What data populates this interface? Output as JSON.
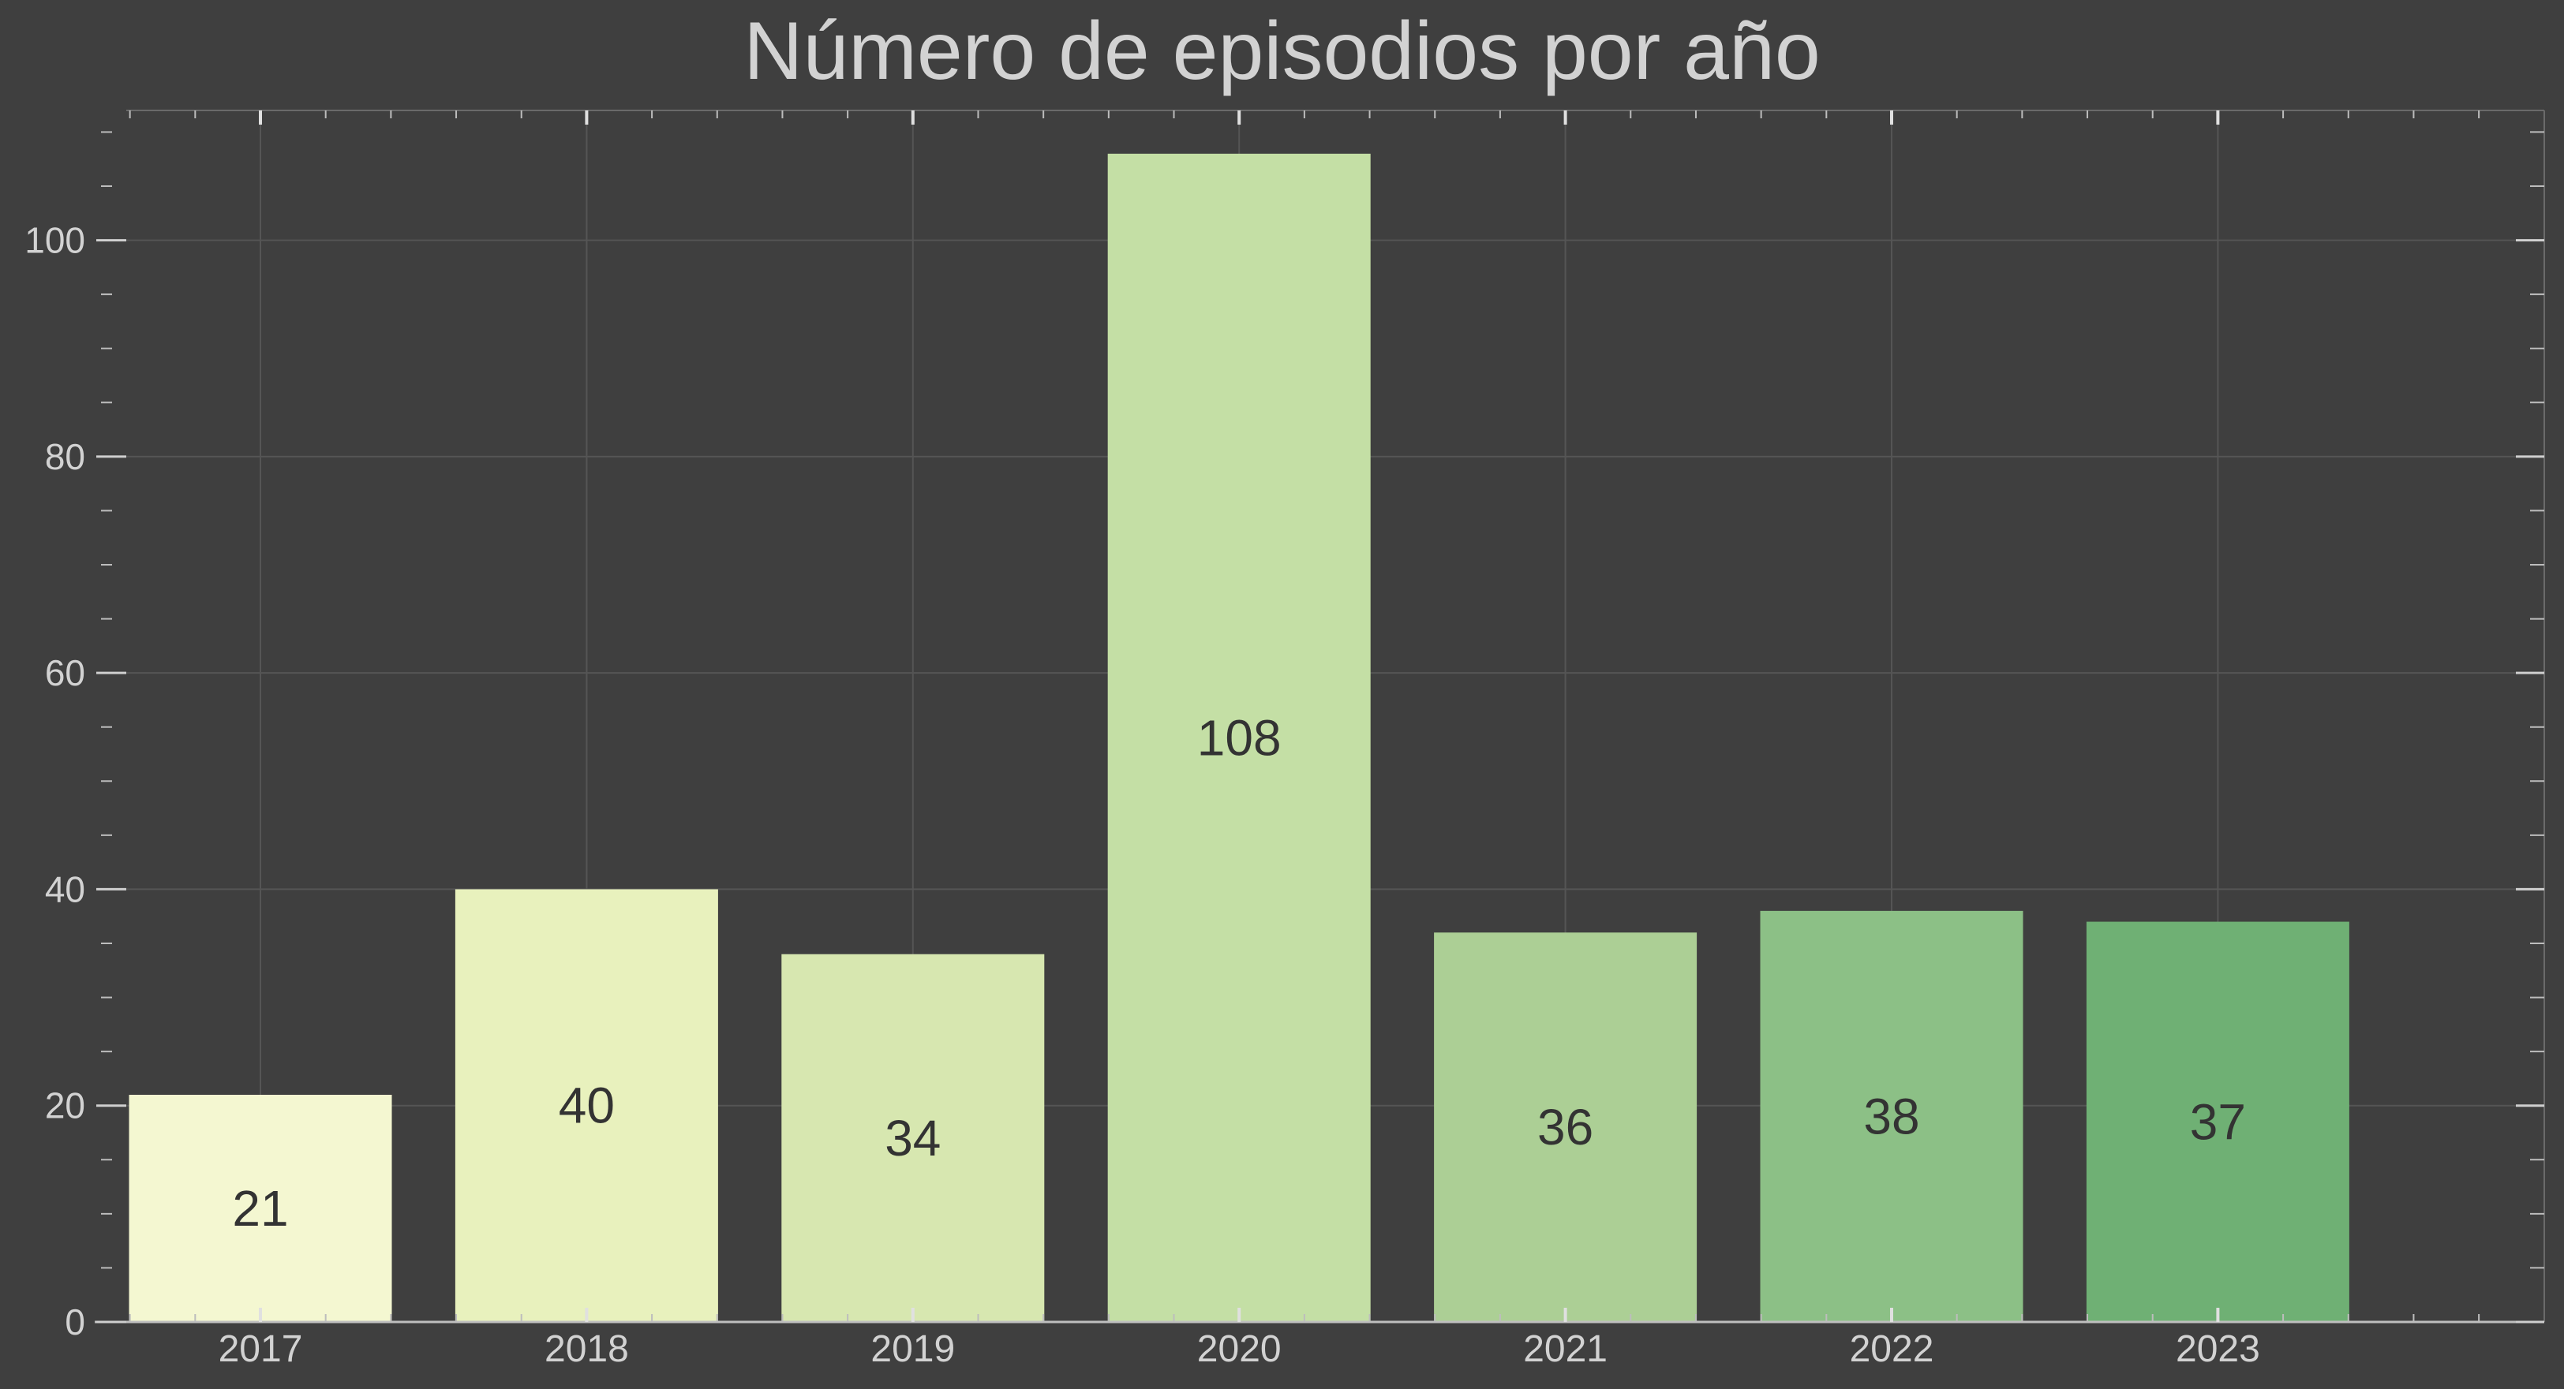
{
  "chart_data": {
    "type": "bar",
    "title": "Número de episodios por año",
    "xlabel": "",
    "ylabel": "",
    "categories": [
      "2017",
      "2018",
      "2019",
      "2020",
      "2021",
      "2022",
      "2023"
    ],
    "values": [
      21,
      40,
      34,
      108,
      36,
      38,
      37
    ],
    "data_labels": [
      "21",
      "40",
      "34",
      "108",
      "36",
      "38",
      "37"
    ],
    "ylim": [
      0,
      112
    ],
    "yticks": [
      0,
      20,
      40,
      60,
      80,
      100
    ],
    "grid": true,
    "legend": "none",
    "colors": [
      "#f4f7d1",
      "#e8f1bd",
      "#d7e7b0",
      "#c4dfa5",
      "#accf95",
      "#8cc086",
      "#6fb074"
    ],
    "background": "#3f3f3f",
    "grid_color": "#555555",
    "text_color": "#d2d2d2",
    "label_color": "#333333"
  }
}
